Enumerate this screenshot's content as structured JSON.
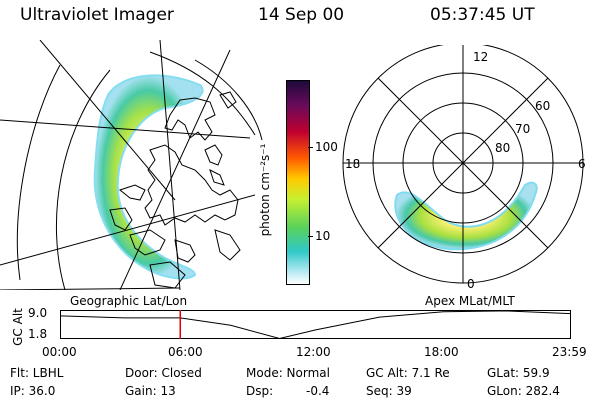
{
  "header": {
    "title": "Ultraviolet Imager",
    "date": "14 Sep 00",
    "time": "05:37:45 UT"
  },
  "colorbar": {
    "label": "photon cm⁻²s⁻¹",
    "ticks": [
      "100",
      "10"
    ],
    "tick_values": [
      100,
      10
    ],
    "colors": [
      "#1e0a3c",
      "#6a0a5a",
      "#c00030",
      "#ff5a00",
      "#ffc800",
      "#c8f030",
      "#5ad25a",
      "#30c8c8",
      "#aae6f0",
      "#ffffff"
    ]
  },
  "polar_plot": {
    "lat_labels": [
      "60",
      "70",
      "80"
    ],
    "mlt_labels": [
      "12",
      "18",
      "6",
      "0"
    ]
  },
  "timeline": {
    "left_label": "Geographic Lat/Lon",
    "right_label": "Apex MLat/MLT",
    "y_axis_label": "GC Alt",
    "y_ticks": [
      "9.0",
      "1.8"
    ],
    "y_tick_values": [
      9.0,
      1.8
    ],
    "x_ticks": [
      "00:00",
      "06:00",
      "12:00",
      "18:00",
      "23:59"
    ],
    "x_tick_hours": [
      0,
      6,
      12,
      18,
      23.98
    ],
    "current_hour": 5.63,
    "curve": [
      {
        "t": 0,
        "alt": 7.6
      },
      {
        "t": 3,
        "alt": 7.1
      },
      {
        "t": 5.63,
        "alt": 7.1
      },
      {
        "t": 8,
        "alt": 5.2
      },
      {
        "t": 10.3,
        "alt": 1.8
      },
      {
        "t": 12,
        "alt": 4.0
      },
      {
        "t": 15,
        "alt": 7.3
      },
      {
        "t": 18,
        "alt": 8.7
      },
      {
        "t": 21,
        "alt": 8.9
      },
      {
        "t": 23.98,
        "alt": 8.2
      }
    ]
  },
  "info": {
    "row1": {
      "filter": "Flt: LBHL",
      "door": "Door: Closed",
      "mode": "Mode: Normal",
      "gc_alt": "GC Alt: 7.1 Re",
      "glat": "GLat:  59.9"
    },
    "row2": {
      "ip": "IP: 36.0",
      "gain": "Gain: 13",
      "dsp_label": "Dsp:",
      "dsp_value": "-0.4",
      "seq": "Seq: 39",
      "glon": "GLon: 282.4"
    }
  }
}
